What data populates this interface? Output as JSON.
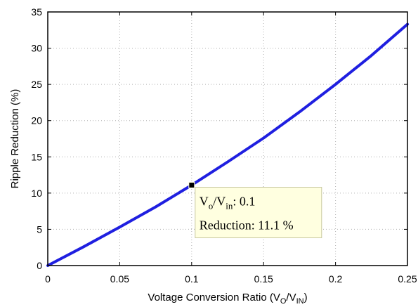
{
  "chart_data": {
    "type": "line",
    "xlabel": {
      "main": "Voltage Conversion Ratio (V",
      "sub1": "O",
      "mid": "/V",
      "sub2": "IN",
      "end": ")"
    },
    "ylabel": "Ripple Reduction (%)",
    "xlim": [
      0,
      0.25
    ],
    "ylim": [
      0,
      35
    ],
    "xticks": [
      "0",
      "0.05",
      "0.1",
      "0.15",
      "0.2",
      "0.25"
    ],
    "yticks": [
      "0",
      "5",
      "10",
      "15",
      "20",
      "25",
      "30",
      "35"
    ],
    "grid": true,
    "series": [
      {
        "color": "#1f1fe0",
        "x": [
          0,
          0.025,
          0.05,
          0.075,
          0.1,
          0.125,
          0.15,
          0.175,
          0.2,
          0.225,
          0.25
        ],
        "y": [
          0,
          2.6,
          5.3,
          8.1,
          11.1,
          14.3,
          17.6,
          21.2,
          25.0,
          29.0,
          33.3
        ]
      }
    ],
    "datatip": {
      "x": 0.1,
      "y": 11.1,
      "line1": {
        "v": "V",
        "sub1": "o",
        "slash": "/V",
        "sub2": "in",
        "value": ": 0.1"
      },
      "line2": "Reduction: 11.1 %"
    }
  }
}
